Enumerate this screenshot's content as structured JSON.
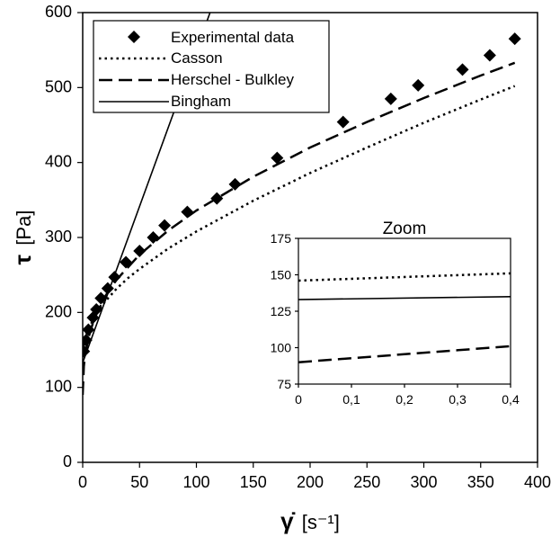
{
  "chart_data": [
    {
      "type": "scatter",
      "xlabel_symbol": "γ̇",
      "xlabel_unit": "[s⁻¹]",
      "ylabel_symbol": "τ",
      "ylabel_unit": "[Pa]",
      "xlim": [
        0,
        400
      ],
      "ylim": [
        0,
        600
      ],
      "xticks": [
        "0",
        "50",
        "100",
        "150",
        "200",
        "250",
        "300",
        "350",
        "400"
      ],
      "yticks": [
        "0",
        "100",
        "200",
        "300",
        "400",
        "500",
        "600"
      ],
      "grid": false,
      "legend_position": "top-left",
      "series": [
        {
          "name": "Experimental data",
          "style": "diamond-markers",
          "color": "#000000",
          "points": [
            [
              1,
              148
            ],
            [
              3,
              163
            ],
            [
              5,
              177
            ],
            [
              9,
              193
            ],
            [
              12,
              204
            ],
            [
              16,
              219
            ],
            [
              22,
              232
            ],
            [
              28,
              247
            ],
            [
              38,
              267
            ],
            [
              50,
              282
            ],
            [
              62,
              300
            ],
            [
              72,
              316
            ],
            [
              92,
              334
            ],
            [
              118,
              352
            ],
            [
              134,
              371
            ],
            [
              171,
              406
            ],
            [
              229,
              454
            ],
            [
              271,
              485
            ],
            [
              295,
              503
            ],
            [
              334,
              524
            ],
            [
              358,
              543
            ],
            [
              380,
              565
            ]
          ]
        },
        {
          "name": "Casson",
          "style": "dotted",
          "color": "#000000",
          "points": [
            [
              0,
              148
            ],
            [
              2,
              166
            ],
            [
              5,
              177
            ],
            [
              10,
              193
            ],
            [
              15,
              205
            ],
            [
              20,
              215
            ],
            [
              30,
              232
            ],
            [
              40,
              246
            ],
            [
              50,
              258
            ],
            [
              75,
              285
            ],
            [
              100,
              308
            ],
            [
              150,
              349
            ],
            [
              200,
              386
            ],
            [
              250,
              420
            ],
            [
              300,
              453
            ],
            [
              350,
              484
            ],
            [
              380,
              502
            ]
          ]
        },
        {
          "name": "Herschel - Bulkley",
          "style": "dashed",
          "color": "#000000",
          "points": [
            [
              0,
              90
            ],
            [
              1,
              128
            ],
            [
              2,
              142
            ],
            [
              5,
              166
            ],
            [
              10,
              191
            ],
            [
              20,
              222
            ],
            [
              30,
              244
            ],
            [
              50,
              277
            ],
            [
              75,
              309
            ],
            [
              100,
              336
            ],
            [
              150,
              381
            ],
            [
              200,
              420
            ],
            [
              250,
              454
            ],
            [
              300,
              486
            ],
            [
              350,
              516
            ],
            [
              380,
              533
            ]
          ]
        },
        {
          "name": "Bingham",
          "style": "solid",
          "color": "#000000",
          "points": [
            [
              0,
              133
            ],
            [
              112,
              600
            ]
          ]
        }
      ]
    },
    {
      "type": "line",
      "title": "Zoom",
      "xlim": [
        0,
        0.4
      ],
      "ylim": [
        75,
        175
      ],
      "xticks": [
        "0",
        "0,1",
        "0,2",
        "0,3",
        "0,4"
      ],
      "yticks": [
        "75",
        "100",
        "125",
        "150",
        "175"
      ],
      "series": [
        {
          "name": "Casson",
          "style": "dotted",
          "points": [
            [
              0,
              146
            ],
            [
              0.4,
              151
            ]
          ]
        },
        {
          "name": "Herschel - Bulkley",
          "style": "dashed",
          "points": [
            [
              0,
              90
            ],
            [
              0.4,
              101
            ]
          ]
        },
        {
          "name": "Bingham",
          "style": "solid",
          "points": [
            [
              0,
              133
            ],
            [
              0.4,
              135
            ]
          ]
        }
      ]
    }
  ]
}
